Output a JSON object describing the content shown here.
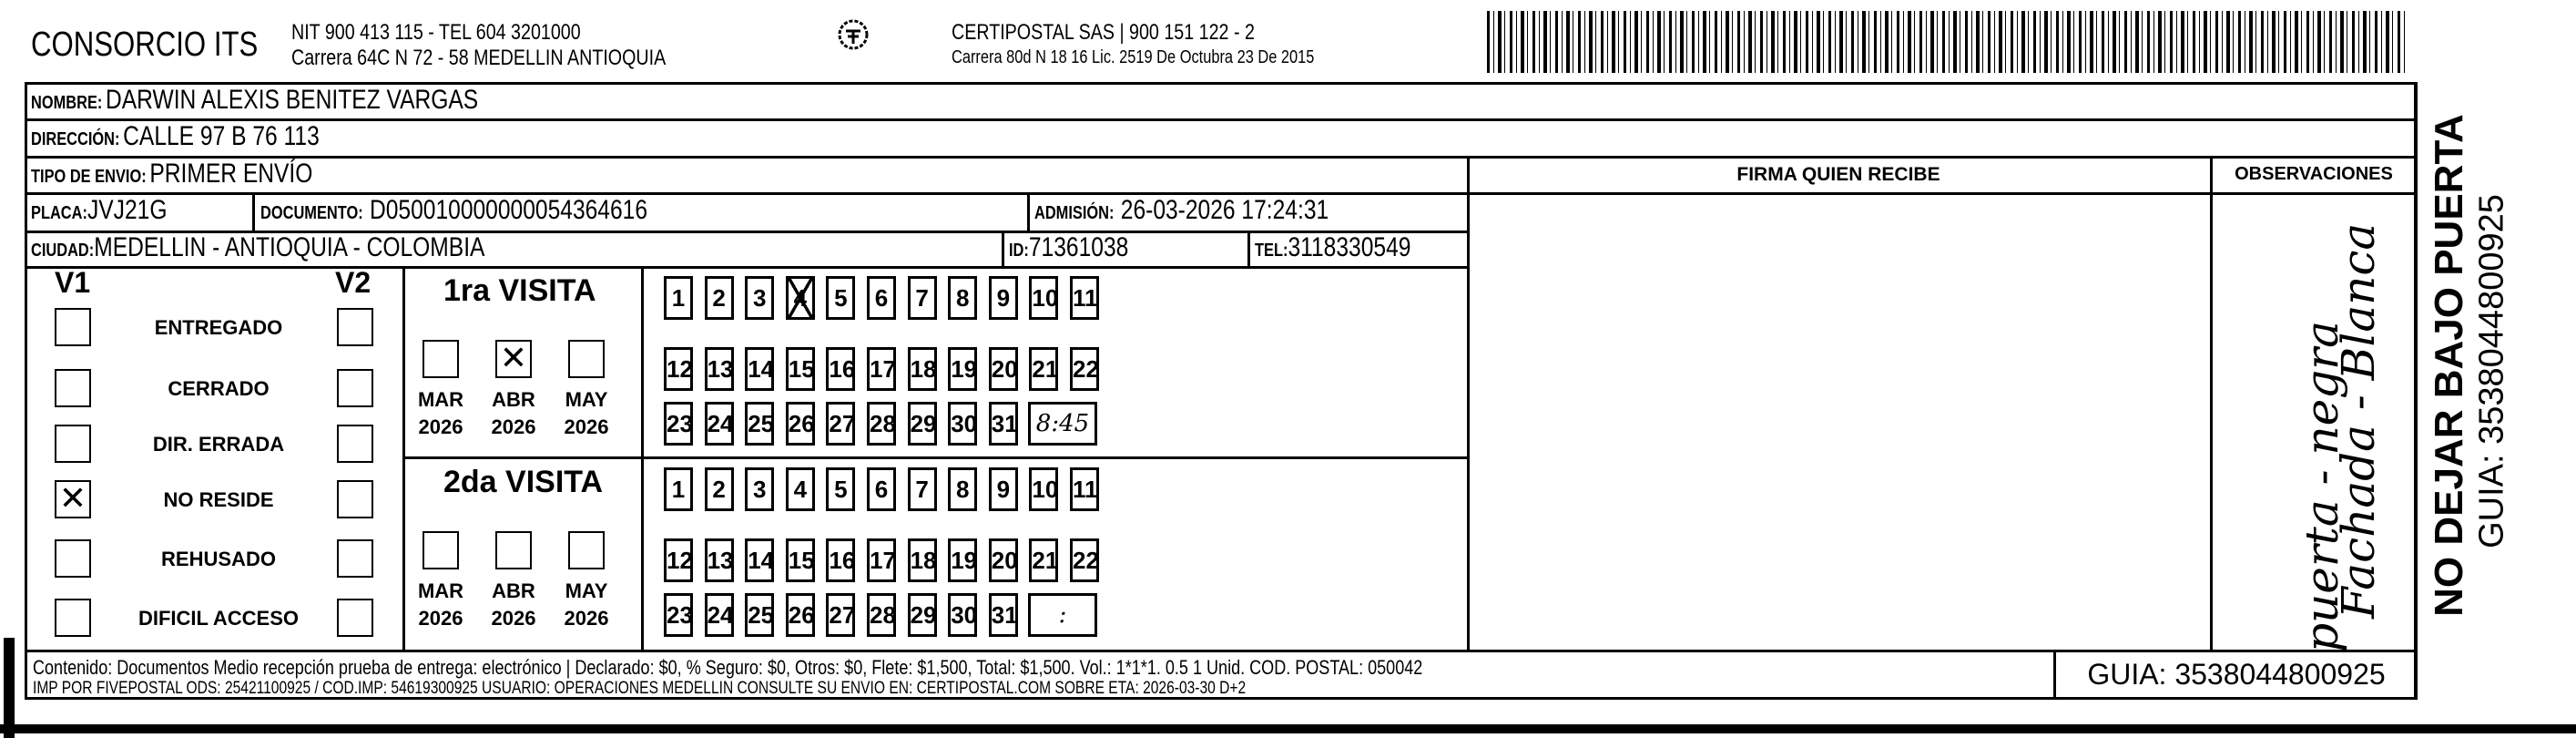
{
  "header": {
    "company": "CONSORCIO ITS",
    "nit_line": "NIT 900 413 115 - TEL 604 3201000",
    "address_line": "Carrera 64C N 72 - 58 MEDELLIN ANTIOQUIA",
    "logo_text": "CERTIPOSTAL",
    "carrier_line": "CERTIPOSTAL SAS | 900 151 122 - 2",
    "carrier_address": "Carrera 80d N 18 16  Lic. 2519 De Octubra 23 De 2015",
    "barcode_icon": "barcode-icon"
  },
  "fields": {
    "nombre_label": "NOMBRE:",
    "nombre": "DARWIN ALEXIS BENITEZ VARGAS",
    "direccion_label": "DIRECCIÓN:",
    "direccion": "CALLE 97 B 76 113",
    "tipo_label": "TIPO DE ENVIO:",
    "tipo": "PRIMER ENVÍO",
    "placa_label": "PLACA:",
    "placa": "JVJ21G",
    "documento_label": "DOCUMENTO:",
    "documento": "D050010000000054364616",
    "admision_label": "ADMISIÓN:",
    "admision": "26-03-2026 17:24:31",
    "ciudad_label": "CIUDAD:",
    "ciudad": "MEDELLIN - ANTIOQUIA - COLOMBIA",
    "id_label": "ID:",
    "id": "71361038",
    "tel_label": "TEL:",
    "tel": "3118330549"
  },
  "firma_header": "FIRMA QUIEN RECIBE",
  "observaciones": {
    "header": "OBSERVACIONES",
    "handwritten_line1": "Fachada - Blanca",
    "handwritten_line2": "puerta - negra"
  },
  "status": {
    "v1": "V1",
    "v2": "V2",
    "items": [
      {
        "label": "ENTREGADO",
        "v1": false,
        "v2": false
      },
      {
        "label": "CERRADO",
        "v1": false,
        "v2": false
      },
      {
        "label": "DIR. ERRADA",
        "v1": false,
        "v2": false
      },
      {
        "label": "NO RESIDE",
        "v1": true,
        "v2": false
      },
      {
        "label": "REHUSADO",
        "v1": false,
        "v2": false
      },
      {
        "label": "DIFICIL ACCESO",
        "v1": false,
        "v2": false
      }
    ]
  },
  "visits": [
    {
      "title": "1ra VISITA",
      "months": [
        {
          "m": "MAR",
          "y": "2026",
          "checked": false
        },
        {
          "m": "ABR",
          "y": "2026",
          "checked": true
        },
        {
          "m": "MAY",
          "y": "2026",
          "checked": false
        }
      ],
      "marked_day": 4,
      "time": "8:45"
    },
    {
      "title": "2da VISITA",
      "months": [
        {
          "m": "MAR",
          "y": "2026",
          "checked": false
        },
        {
          "m": "ABR",
          "y": "2026",
          "checked": false
        },
        {
          "m": "MAY",
          "y": "2026",
          "checked": false
        }
      ],
      "marked_day": null,
      "time": ":"
    }
  ],
  "footer": {
    "line1": "Contenido: Documentos Medio recepción prueba de entrega: electrónico | Declarado: $0, % Seguro: $0, Otros: $0, Flete: $1,500, Total: $1,500. Vol.: 1*1*1. 0.5  1 Unid. COD. POSTAL: 050042",
    "line2": "IMP POR FIVEPOSTAL ODS: 25421100925 / COD.IMP: 54619300925 USUARIO: OPERACIONES MEDELLIN CONSULTE SU ENVIO EN: CERTIPOSTAL.COM SOBRE ETA: 2026-03-30 D+2",
    "guia": "GUIA: 3538044800925"
  },
  "side": {
    "warning": "NO DEJAR BAJO PUERTA",
    "guia": "GUIA: 3538044800925"
  }
}
